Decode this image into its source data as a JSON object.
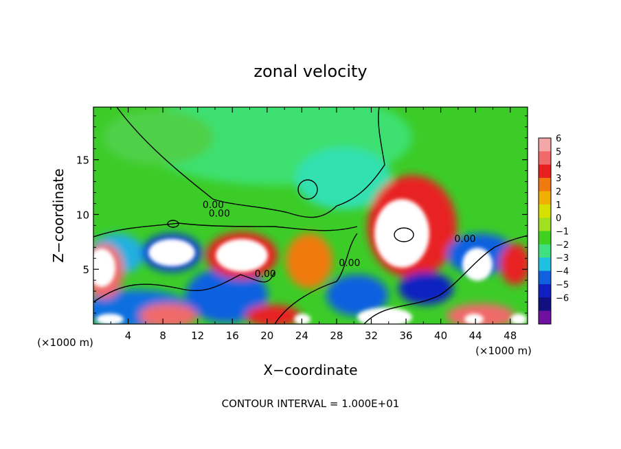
{
  "chart_data": {
    "type": "heatmap",
    "title": "zonal velocity",
    "xlabel": "X−coordinate",
    "ylabel": "Z−coordinate",
    "x_unit_left": "(×1000 m)",
    "x_unit_right": "(×1000 m)",
    "footer": "CONTOUR INTERVAL = 1.000E+01",
    "xlim": [
      0,
      50
    ],
    "ylim": [
      0,
      19.8
    ],
    "x_ticks": [
      4,
      8,
      12,
      16,
      20,
      24,
      28,
      32,
      36,
      40,
      44,
      48
    ],
    "y_ticks": [
      5,
      10,
      15
    ],
    "colorbar": {
      "levels": [
        6,
        5,
        4,
        3,
        2,
        1,
        0,
        -1,
        -2,
        -3,
        -4,
        -5,
        -6
      ],
      "colors": [
        "#f4a7a7",
        "#f06a6a",
        "#e82020",
        "#f07a10",
        "#f0b000",
        "#d8e000",
        "#a0e020",
        "#40d020",
        "#40e080",
        "#20c0e0",
        "#1060e0",
        "#1020c0",
        "#101080",
        "#7010a0"
      ]
    },
    "contour_labels": [
      {
        "text": "0.00",
        "x": 13.8,
        "y": 10.6
      },
      {
        "text": "0.00",
        "x": 14.5,
        "y": 9.8
      },
      {
        "text": "0.00",
        "x": 19.8,
        "y": 4.3
      },
      {
        "text": "0.00",
        "x": 29.5,
        "y": 5.3
      },
      {
        "text": "0.00",
        "x": 42.8,
        "y": 7.5
      }
    ]
  }
}
